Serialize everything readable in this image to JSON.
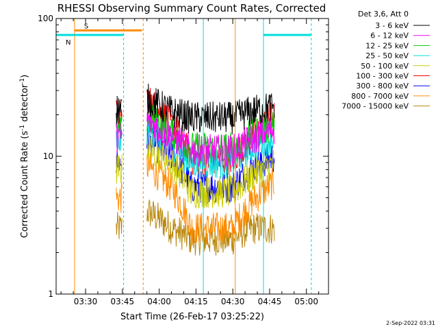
{
  "chart_data": {
    "type": "line",
    "title": "RHESSI Observing Summary Count Rates, Corrected",
    "xlabel": "Start Time (26-Feb-17 03:25:22)",
    "ylabel_main": "Corrected Count Rate (s",
    "ylabel_sup1": "-1",
    "ylabel_mid": " detector",
    "ylabel_sup2": "-1",
    "ylabel_end": ")",
    "yscale": "log",
    "ylim": [
      1,
      100
    ],
    "yticks": [
      "1",
      "10",
      "100"
    ],
    "xlim_minutes": [
      -7,
      104
    ],
    "xticks": [
      {
        "minute": 5,
        "label": "03:30"
      },
      {
        "minute": 20,
        "label": "03:45"
      },
      {
        "minute": 35,
        "label": "04:00"
      },
      {
        "minute": 50,
        "label": "04:15"
      },
      {
        "minute": 65,
        "label": "04:30"
      },
      {
        "minute": 80,
        "label": "04:45"
      },
      {
        "minute": 95,
        "label": "05:00"
      }
    ],
    "legend_header": "Det 3,6, Att 0",
    "series": [
      {
        "name": "3 - 6 keV",
        "color": "#000000",
        "segA": [
          22,
          22
        ],
        "segB": [
          26,
          21,
          19,
          19,
          21,
          23
        ]
      },
      {
        "name": "6 - 12 keV",
        "color": "#ff00ff",
        "segA": [
          14,
          14
        ],
        "segB": [
          18,
          14,
          11,
          11,
          13,
          16
        ]
      },
      {
        "name": "12 - 25 keV",
        "color": "#00cc00",
        "segA": [
          15,
          15
        ],
        "segB": [
          19,
          15,
          11.5,
          11.5,
          14,
          17
        ]
      },
      {
        "name": "25 - 50 keV",
        "color": "#00dddd",
        "segA": [
          13,
          13
        ],
        "segB": [
          16,
          12.5,
          9,
          9,
          11.5,
          14
        ]
      },
      {
        "name": "50 - 100 keV",
        "color": "#cccc00",
        "segA": [
          8,
          8
        ],
        "segB": [
          12,
          9,
          5.5,
          5.5,
          7,
          9
        ]
      },
      {
        "name": "100 - 300 keV",
        "color": "#ff0000",
        "segA": [
          20,
          20
        ],
        "segB": [
          26,
          17,
          9.5,
          9.5,
          13,
          20
        ]
      },
      {
        "name": "300 - 800 keV",
        "color": "#0000ff",
        "segA": [
          9,
          9
        ],
        "segB": [
          13,
          10,
          6,
          6,
          8,
          10
        ]
      },
      {
        "name": "800 - 7000 keV",
        "color": "#ff8c00",
        "segA": [
          5,
          5
        ],
        "segB": [
          8.5,
          6,
          3,
          3,
          4.5,
          6.5
        ]
      },
      {
        "name": "7000 - 15000 keV",
        "color": "#b8860b",
        "segA": [
          3,
          3
        ],
        "segB": [
          4,
          3,
          2.5,
          2.5,
          3,
          3
        ]
      }
    ],
    "segments": {
      "segA_minutes": [
        17.5,
        20
      ],
      "segB_minutes": [
        30,
        40,
        48,
        65,
        72,
        82
      ]
    },
    "markers": [
      {
        "label": "S",
        "color": "#ff8c00",
        "x0": 0.5,
        "x1": 28,
        "value": 82
      },
      {
        "label": "N",
        "color": "#00dddd",
        "x0": -7,
        "x1": 20.5,
        "value": 76
      },
      {
        "label": "",
        "color": "#00dddd",
        "x0": 77.5,
        "x1": 97,
        "value": 76
      }
    ],
    "vlines": [
      {
        "minute": 0.5,
        "color": "#ff8c00",
        "dashed": false
      },
      {
        "minute": 20.5,
        "color": "#00dddd",
        "dashed": true
      },
      {
        "minute": 28.5,
        "color": "#ff8c00",
        "dashed": true
      },
      {
        "minute": 53,
        "color": "#00dddd",
        "dashed": false
      },
      {
        "minute": 66,
        "color": "#ff8c00",
        "dashed": false
      },
      {
        "minute": 77.5,
        "color": "#00dddd",
        "dashed": false
      },
      {
        "minute": 97,
        "color": "#00dddd",
        "dashed": true
      }
    ]
  },
  "footer": {
    "date": "2-Sep-2022 03:31"
  }
}
